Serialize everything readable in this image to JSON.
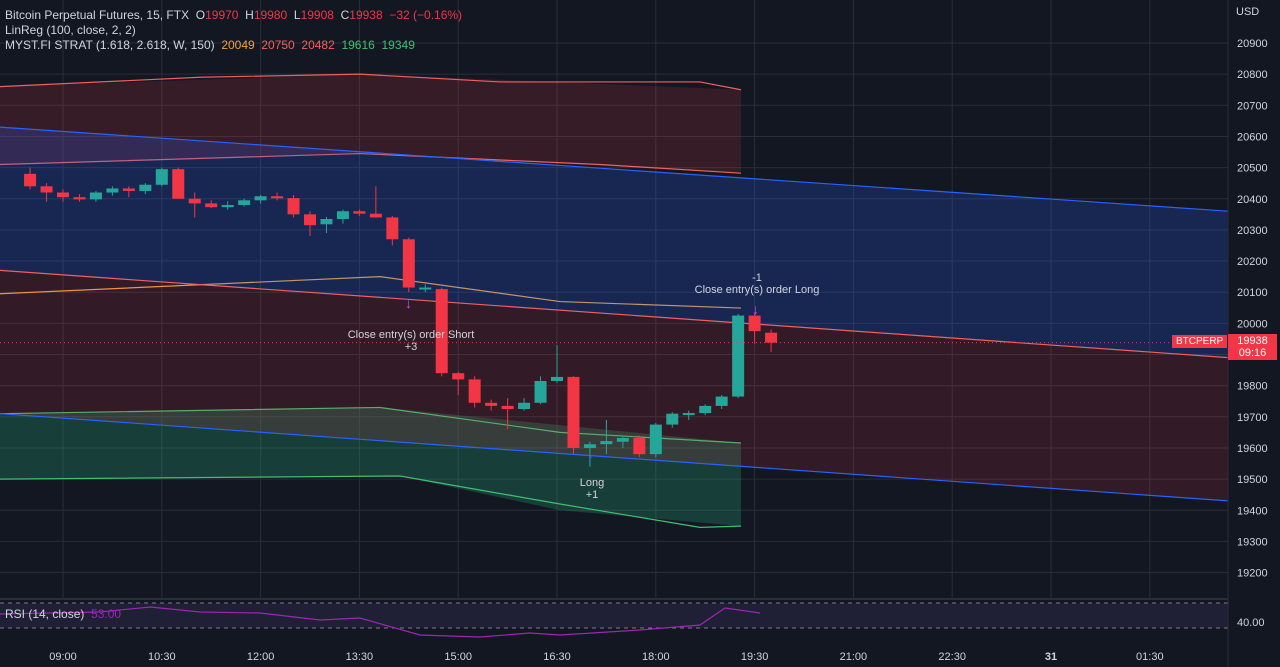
{
  "header": {
    "symbol": "Bitcoin Perpetual Futures, 15, FTX",
    "open_label": "O",
    "open": "19970",
    "high_label": "H",
    "high": "19980",
    "low_label": "L",
    "low": "19908",
    "close_label": "C",
    "close": "19938",
    "change": "−32 (−0.16%)"
  },
  "indicators": {
    "linreg": "LinReg (100, close, 2, 2)",
    "myst_label": "MYST.FI STRAT (1.618, 2.618, W, 150)",
    "myst_values": [
      "20049",
      "20750",
      "20482",
      "19616",
      "19349"
    ]
  },
  "rsi": {
    "label": "RSI (14, close)",
    "value": "53.00",
    "axis_label": "40.00"
  },
  "price_axis": {
    "currency": "USD"
  },
  "price_tag": {
    "symbol": "BTCPERP",
    "price": "19938",
    "countdown": "09:16"
  },
  "annotations": {
    "short_close": "Close entry(s) order Short",
    "short_qty": "+3",
    "long": "Long",
    "long_qty": "+1",
    "long_close_qty": "-1",
    "long_close": "Close entry(s) order Long"
  },
  "colors": {
    "bull": "#26a69a",
    "bear": "#f23645",
    "background": "#131722",
    "myst_orange": "#f0a040",
    "myst_red": "#f06060",
    "myst_green": "#40c070",
    "linreg_blue": "#2962ff",
    "rsi": "#9c27b0"
  },
  "chart_data": {
    "type": "candlestick",
    "y_range": [
      19120,
      20990
    ],
    "y_ticks": [
      20900,
      20800,
      20700,
      20600,
      20500,
      20400,
      20300,
      20200,
      20100,
      20000,
      19900,
      19800,
      19700,
      19600,
      19500,
      19400,
      19300,
      19200
    ],
    "x_ticks": [
      "09:00",
      "10:30",
      "12:00",
      "13:30",
      "15:00",
      "16:30",
      "18:00",
      "19:30",
      "21:00",
      "22:30",
      "31",
      "01:30"
    ],
    "candles": [
      {
        "t": "08:30",
        "o": 20480,
        "h": 20500,
        "l": 20430,
        "c": 20440
      },
      {
        "t": "08:45",
        "o": 20440,
        "h": 20450,
        "l": 20390,
        "c": 20420
      },
      {
        "t": "09:00",
        "o": 20420,
        "h": 20430,
        "l": 20390,
        "c": 20405
      },
      {
        "t": "09:15",
        "o": 20405,
        "h": 20415,
        "l": 20390,
        "c": 20398
      },
      {
        "t": "09:30",
        "o": 20398,
        "h": 20425,
        "l": 20390,
        "c": 20420
      },
      {
        "t": "09:45",
        "o": 20420,
        "h": 20440,
        "l": 20410,
        "c": 20433
      },
      {
        "t": "10:00",
        "o": 20433,
        "h": 20440,
        "l": 20405,
        "c": 20425
      },
      {
        "t": "10:15",
        "o": 20425,
        "h": 20450,
        "l": 20415,
        "c": 20445
      },
      {
        "t": "10:30",
        "o": 20445,
        "h": 20500,
        "l": 20440,
        "c": 20495
      },
      {
        "t": "10:45",
        "o": 20495,
        "h": 20500,
        "l": 20400,
        "c": 20400
      },
      {
        "t": "11:00",
        "o": 20400,
        "h": 20420,
        "l": 20340,
        "c": 20385
      },
      {
        "t": "11:15",
        "o": 20385,
        "h": 20395,
        "l": 20370,
        "c": 20373
      },
      {
        "t": "11:30",
        "o": 20373,
        "h": 20392,
        "l": 20365,
        "c": 20380
      },
      {
        "t": "11:45",
        "o": 20380,
        "h": 20400,
        "l": 20375,
        "c": 20395
      },
      {
        "t": "12:00",
        "o": 20395,
        "h": 20412,
        "l": 20385,
        "c": 20408
      },
      {
        "t": "12:15",
        "o": 20408,
        "h": 20420,
        "l": 20395,
        "c": 20402
      },
      {
        "t": "12:30",
        "o": 20402,
        "h": 20412,
        "l": 20340,
        "c": 20350
      },
      {
        "t": "12:45",
        "o": 20350,
        "h": 20360,
        "l": 20280,
        "c": 20315
      },
      {
        "t": "13:00",
        "o": 20318,
        "h": 20342,
        "l": 20290,
        "c": 20335
      },
      {
        "t": "13:15",
        "o": 20335,
        "h": 20365,
        "l": 20320,
        "c": 20360
      },
      {
        "t": "13:30",
        "o": 20360,
        "h": 20365,
        "l": 20345,
        "c": 20352
      },
      {
        "t": "13:45",
        "o": 20352,
        "h": 20440,
        "l": 20340,
        "c": 20340
      },
      {
        "t": "14:00",
        "o": 20340,
        "h": 20345,
        "l": 20250,
        "c": 20270
      },
      {
        "t": "14:15",
        "o": 20270,
        "h": 20275,
        "l": 20100,
        "c": 20115
      },
      {
        "t": "14:30",
        "o": 20115,
        "h": 20125,
        "l": 20100,
        "c": 20115
      },
      {
        "t": "14:45",
        "o": 20110,
        "h": 20115,
        "l": 19830,
        "c": 19840
      },
      {
        "t": "15:00",
        "o": 19840,
        "h": 19845,
        "l": 19770,
        "c": 19820
      },
      {
        "t": "15:15",
        "o": 19820,
        "h": 19830,
        "l": 19730,
        "c": 19745
      },
      {
        "t": "15:30",
        "o": 19745,
        "h": 19755,
        "l": 19720,
        "c": 19735
      },
      {
        "t": "15:45",
        "o": 19735,
        "h": 19760,
        "l": 19660,
        "c": 19725
      },
      {
        "t": "16:00",
        "o": 19725,
        "h": 19760,
        "l": 19720,
        "c": 19745
      },
      {
        "t": "16:15",
        "o": 19745,
        "h": 19830,
        "l": 19740,
        "c": 19815
      },
      {
        "t": "16:30",
        "o": 19815,
        "h": 19930,
        "l": 19810,
        "c": 19828
      },
      {
        "t": "16:45",
        "o": 19828,
        "h": 19830,
        "l": 19580,
        "c": 19600
      },
      {
        "t": "17:00",
        "o": 19600,
        "h": 19620,
        "l": 19540,
        "c": 19612
      },
      {
        "t": "17:15",
        "o": 19612,
        "h": 19690,
        "l": 19580,
        "c": 19622
      },
      {
        "t": "17:30",
        "o": 19620,
        "h": 19635,
        "l": 19600,
        "c": 19632
      },
      {
        "t": "17:45",
        "o": 19632,
        "h": 19640,
        "l": 19570,
        "c": 19580
      },
      {
        "t": "18:00",
        "o": 19580,
        "h": 19680,
        "l": 19570,
        "c": 19675
      },
      {
        "t": "18:15",
        "o": 19675,
        "h": 19715,
        "l": 19665,
        "c": 19710
      },
      {
        "t": "18:30",
        "o": 19710,
        "h": 19720,
        "l": 19690,
        "c": 19712
      },
      {
        "t": "18:45",
        "o": 19712,
        "h": 19740,
        "l": 19705,
        "c": 19735
      },
      {
        "t": "19:00",
        "o": 19735,
        "h": 19770,
        "l": 19725,
        "c": 19765
      },
      {
        "t": "19:15",
        "o": 19765,
        "h": 20030,
        "l": 19760,
        "c": 20025
      },
      {
        "t": "19:30",
        "o": 20025,
        "h": 20030,
        "l": 19935,
        "c": 19975
      },
      {
        "t": "19:45",
        "o": 19970,
        "h": 19980,
        "l": 19908,
        "c": 19938
      }
    ],
    "myst_bands_end": {
      "r2": 20750,
      "r1": 20482,
      "mid": 20049,
      "s1": 19616,
      "s2": 19349
    },
    "rsi_end": 53.0,
    "rsi_levels": [
      70,
      30
    ]
  }
}
